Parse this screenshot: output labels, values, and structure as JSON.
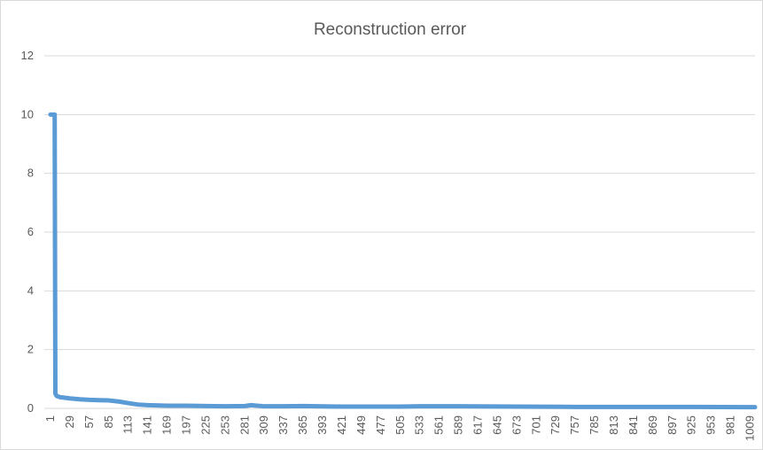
{
  "chart_data": {
    "type": "line",
    "title": "Reconstruction error",
    "x": [
      1,
      2,
      3,
      4,
      5,
      6,
      7,
      8,
      10,
      15,
      29,
      43,
      57,
      71,
      85,
      100,
      113,
      127,
      141,
      169,
      197,
      225,
      253,
      281,
      290,
      309,
      337,
      365,
      421,
      505,
      533,
      589,
      673,
      757,
      841,
      925,
      1009,
      1016
    ],
    "values": [
      10,
      10,
      10,
      10,
      10,
      10,
      10,
      0.5,
      0.42,
      0.38,
      0.34,
      0.31,
      0.29,
      0.28,
      0.27,
      0.23,
      0.18,
      0.13,
      0.11,
      0.09,
      0.09,
      0.08,
      0.07,
      0.08,
      0.11,
      0.07,
      0.07,
      0.08,
      0.06,
      0.06,
      0.07,
      0.07,
      0.06,
      0.05,
      0.05,
      0.05,
      0.04,
      0.04
    ],
    "color": "#5b9bd5",
    "xlim": [
      1,
      1016
    ],
    "xticks": [
      1,
      29,
      57,
      85,
      113,
      141,
      169,
      197,
      225,
      253,
      281,
      309,
      337,
      365,
      393,
      421,
      449,
      477,
      505,
      533,
      561,
      589,
      617,
      645,
      673,
      701,
      729,
      757,
      785,
      813,
      841,
      869,
      897,
      925,
      953,
      981,
      1009
    ],
    "ylim": [
      0,
      12
    ],
    "yticks": [
      0,
      2,
      4,
      6,
      8,
      10,
      12
    ],
    "grid": true
  }
}
